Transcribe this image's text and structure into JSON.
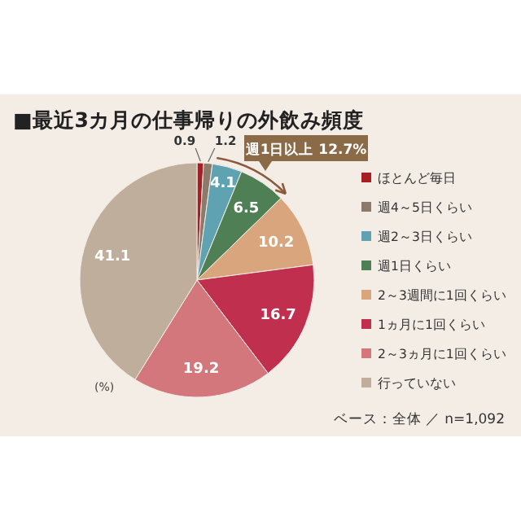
{
  "chart_data": {
    "type": "pie",
    "title": "■最近3カ月の仕事帰りの外飲み頻度",
    "categories": [
      "ほとんど毎日",
      "週4～5日くらい",
      "週2～3日くらい",
      "週1日くらい",
      "2～3週間に1回くらい",
      "1ヵ月に1回くらい",
      "2～3ヵ月に1回くらい",
      "行っていない"
    ],
    "values": [
      0.9,
      1.2,
      4.1,
      6.5,
      10.2,
      16.7,
      19.2,
      41.1
    ],
    "colors": [
      "#a51f24",
      "#8c7b6a",
      "#5fa3b3",
      "#4e7f55",
      "#d9a57d",
      "#c0304e",
      "#d4777c",
      "#bfae9c"
    ],
    "data_labels": true,
    "legend": "right",
    "annotations": [
      "週1日以上 12.7%",
      "(%)",
      "ベース：全体 ／ n=1,092"
    ]
  }
}
